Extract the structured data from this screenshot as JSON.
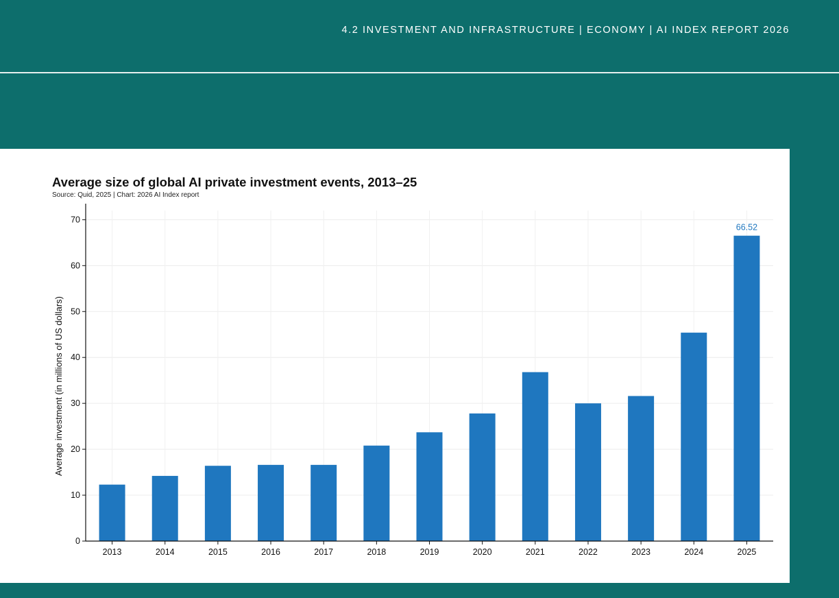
{
  "header": {
    "breadcrumb": "4.2 INVESTMENT AND INFRASTRUCTURE  |  ECONOMY  |  AI INDEX REPORT 2026"
  },
  "colors": {
    "background": "#0d6e6c",
    "bar": "#1f77bf",
    "data_label": "#1f77bf",
    "panel": "#ffffff"
  },
  "chart_data": {
    "type": "bar",
    "title": "Average size of global AI private investment events, 2013–25",
    "subtitle": "Source: Quid, 2025 | Chart: 2026 AI Index report",
    "xlabel": "",
    "ylabel": "Average investment (in millions of US dollars)",
    "categories": [
      "2013",
      "2014",
      "2015",
      "2016",
      "2017",
      "2018",
      "2019",
      "2020",
      "2021",
      "2022",
      "2023",
      "2024",
      "2025"
    ],
    "values": [
      12.3,
      14.2,
      16.4,
      16.6,
      16.6,
      20.8,
      23.7,
      27.8,
      36.8,
      30.0,
      31.6,
      45.4,
      66.52
    ],
    "ylim": [
      0,
      72
    ],
    "yticks": [
      0,
      10,
      20,
      30,
      40,
      50,
      60,
      70
    ],
    "data_labels": [
      {
        "index": 12,
        "text": "66.52"
      }
    ],
    "grid": true,
    "legend": "none"
  }
}
